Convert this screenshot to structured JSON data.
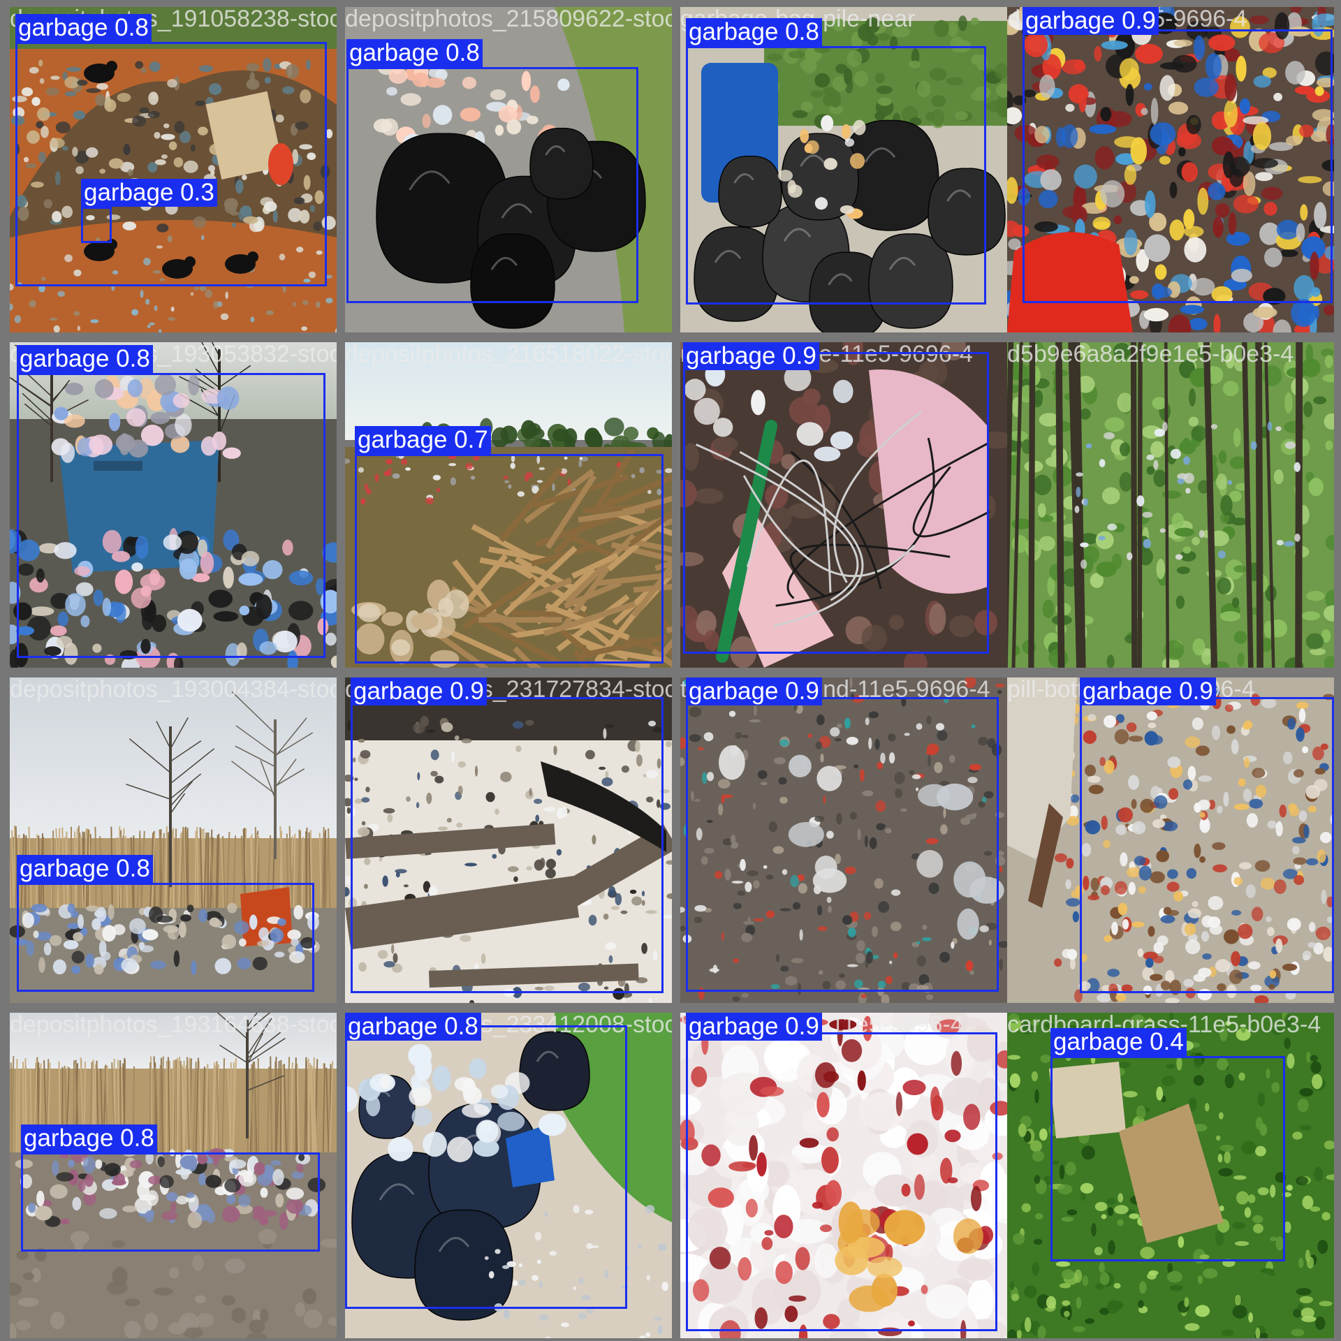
{
  "colors": {
    "box": "#1a2ef0",
    "label_text": "#ffffff",
    "grid_bg": "#777777"
  },
  "tiles": [
    {
      "filename": "depositphotos_191058238-stock-photo-crows",
      "scene": "dump-crows",
      "detections": [
        {
          "label": "garbage 0.8",
          "confidence": 0.8
        },
        {
          "label": "garbage 0.3",
          "confidence": 0.3
        }
      ]
    },
    {
      "filename": "depositphotos_215809622-stock-photo-bags",
      "scene": "black-bags",
      "detections": [
        {
          "label": "garbage 0.8",
          "confidence": 0.8
        }
      ]
    },
    {
      "filename": "garbage-bag-pile-near",
      "scene": "bag-pile-drum",
      "detections": [
        {
          "label": "garbage 0.8",
          "confidence": 0.8
        }
      ]
    },
    {
      "filename": "dumpster-11e5-9696-4",
      "scene": "colorful-heap",
      "detections": [
        {
          "label": "garbage 0.9",
          "confidence": 0.9
        }
      ]
    },
    {
      "filename": "depositphotos_193053832-stock-photo-garb",
      "scene": "dumpster",
      "detections": [
        {
          "label": "garbage 0.8",
          "confidence": 0.8
        }
      ]
    },
    {
      "filename": "depositphotos_216518022-stock-photo",
      "scene": "wood-debris",
      "detections": [
        {
          "label": "garbage 0.7",
          "confidence": 0.7
        }
      ]
    },
    {
      "filename": "medical-waste-11e5-9696-4",
      "scene": "medical-tubes",
      "detections": [
        {
          "label": "garbage 0.9",
          "confidence": 0.9
        }
      ]
    },
    {
      "filename": "d5b9e6a8a2f9e1e5-b0e3-4",
      "scene": "forest",
      "detections": []
    },
    {
      "filename": "depositphotos_193004384-stock-photo",
      "scene": "reeds-tree",
      "detections": [
        {
          "label": "garbage 0.8",
          "confidence": 0.8
        }
      ]
    },
    {
      "filename": "depositphotos_231727834-stock-photo-garb",
      "scene": "beach-logs",
      "detections": [
        {
          "label": "garbage 0.9",
          "confidence": 0.9
        }
      ]
    },
    {
      "filename": "trash-on-ground-11e5-9696-4",
      "scene": "ground-litter",
      "detections": [
        {
          "label": "garbage 0.9",
          "confidence": 0.9
        }
      ]
    },
    {
      "filename": "pill-bottles-11e5-9696-4",
      "scene": "pill-bottles",
      "detections": [
        {
          "label": "garbage 0.9",
          "confidence": 0.9
        }
      ]
    },
    {
      "filename": "depositphotos_193164638-stock-photo",
      "scene": "reeds-dump",
      "detections": [
        {
          "label": "garbage 0.8",
          "confidence": 0.8
        }
      ]
    },
    {
      "filename": "depositphotos_233412008-stock-photo-bags",
      "scene": "blue-bags",
      "detections": [
        {
          "label": "garbage 0.8",
          "confidence": 0.8
        }
      ]
    },
    {
      "filename": "bloody-cotton-11e5-9696-4",
      "scene": "bloody-cotton",
      "detections": [
        {
          "label": "garbage 0.9",
          "confidence": 0.9
        }
      ]
    },
    {
      "filename": "cardboard-grass-11e5-b0e3-4",
      "scene": "cardboard-grass",
      "detections": [
        {
          "label": "garbage 0.4",
          "confidence": 0.4
        }
      ]
    }
  ]
}
